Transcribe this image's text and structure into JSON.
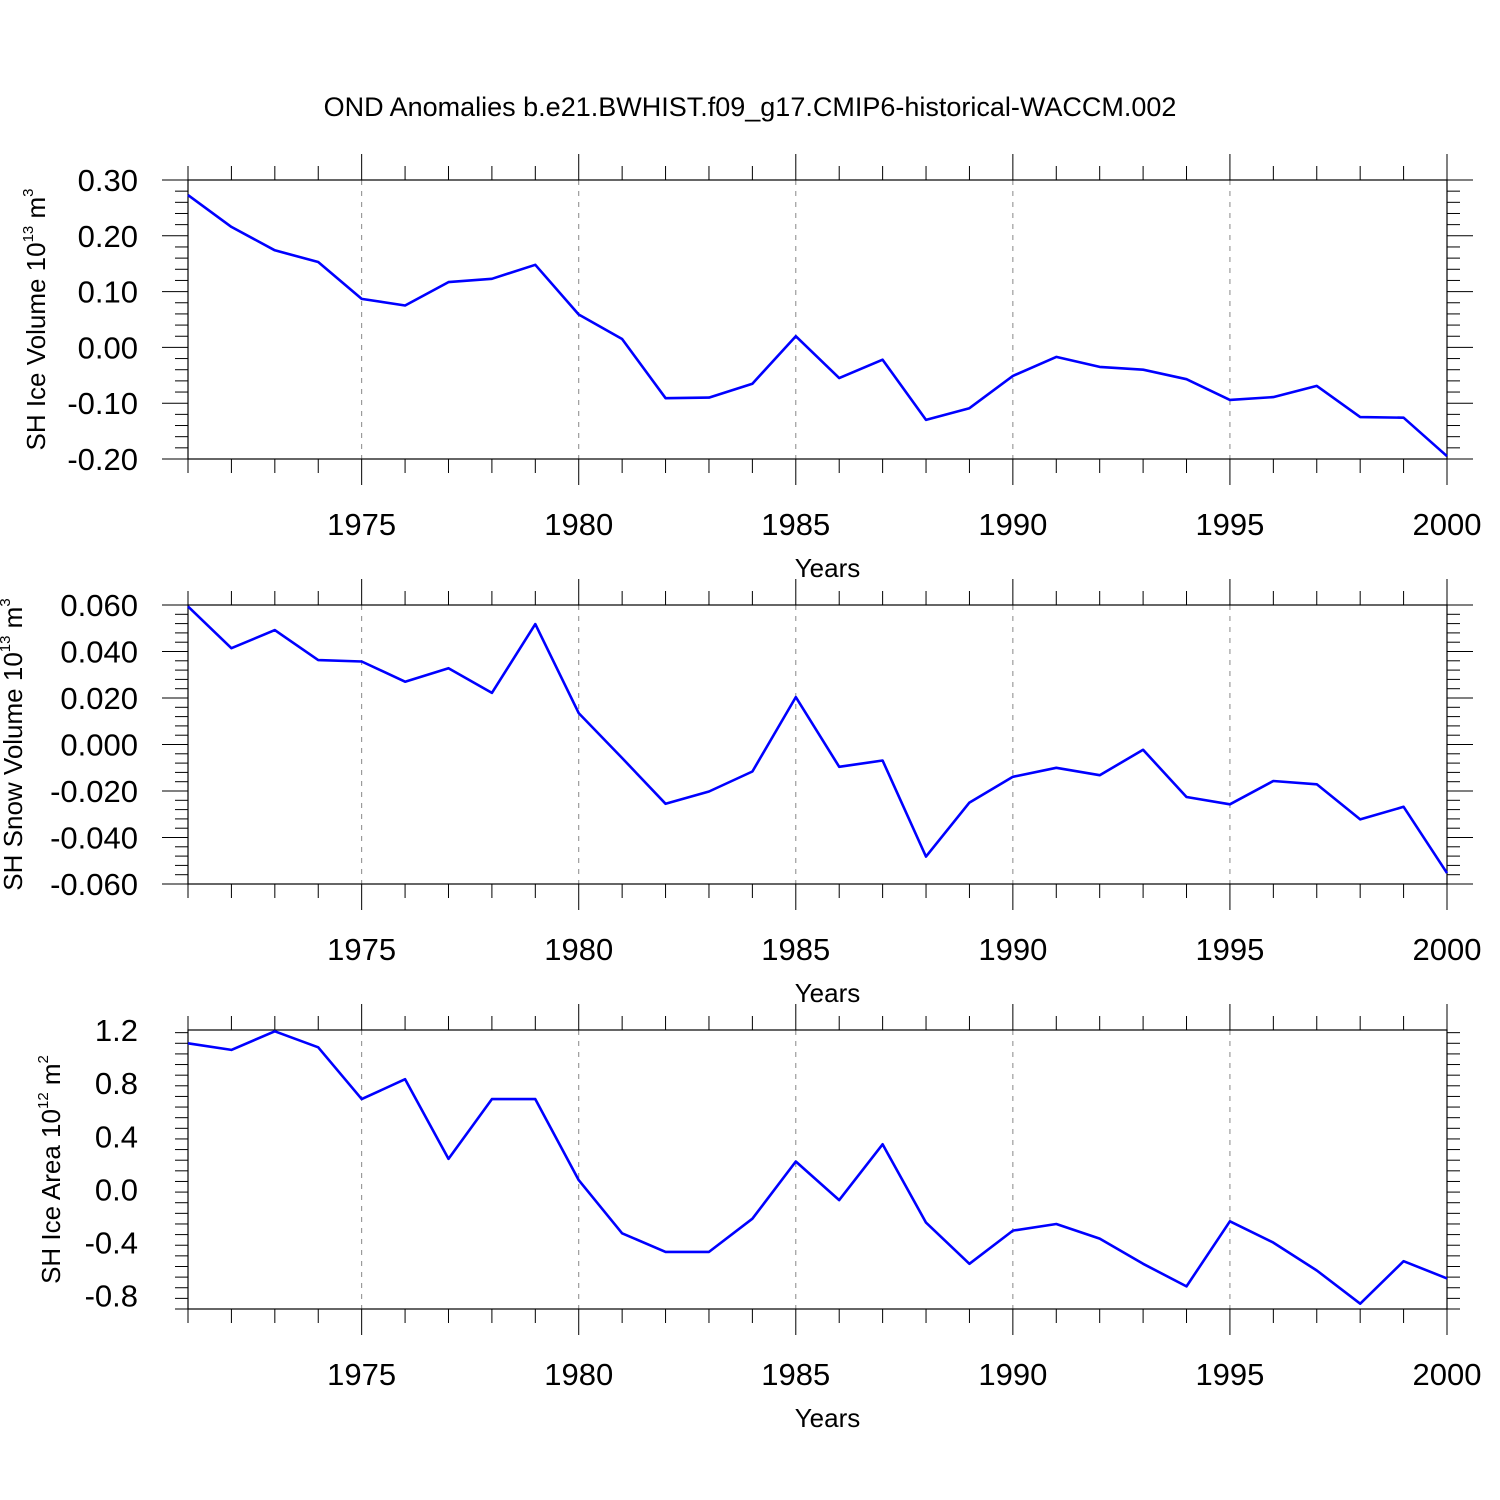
{
  "title": "OND Anomalies b.e21.BWHIST.f09_g17.CMIP6-historical-WACCM.002",
  "style": {
    "line_color": "#0000ff",
    "grid_color": "#888888",
    "axis_color": "#000000"
  },
  "chart_data": [
    {
      "type": "line",
      "title": "OND Anomalies b.e21.BWHIST.f09_g17.CMIP6-historical-WACCM.002",
      "xlabel": "Years",
      "ylabel": {
        "text": "SH Ice Volume 10",
        "exp": "13",
        "unit": " m",
        "unit_exp": "3"
      },
      "xlim": [
        1971,
        2000
      ],
      "ylim": [
        -0.2,
        0.3
      ],
      "x_ticks": [
        1975,
        1980,
        1985,
        1990,
        1995,
        2000
      ],
      "x_tick_labels": [
        "1975",
        "1980",
        "1985",
        "1990",
        "1995",
        "2000"
      ],
      "y_ticks": [
        -0.2,
        -0.1,
        0.0,
        0.1,
        0.2,
        0.3
      ],
      "y_tick_labels": [
        "-0.20",
        "-0.10",
        "0.00",
        "0.10",
        "0.20",
        "0.30"
      ],
      "grid": "vertical dashed at major x ticks",
      "x": [
        1971,
        1972,
        1973,
        1974,
        1975,
        1976,
        1977,
        1978,
        1979,
        1980,
        1981,
        1982,
        1983,
        1984,
        1985,
        1986,
        1987,
        1988,
        1989,
        1990,
        1991,
        1992,
        1993,
        1994,
        1995,
        1996,
        1997,
        1998,
        1999,
        2000
      ],
      "series": [
        {
          "values": [
            0.273,
            0.216,
            0.174,
            0.153,
            0.087,
            0.075,
            0.117,
            0.123,
            0.148,
            0.059,
            0.015,
            -0.091,
            -0.09,
            -0.065,
            0.02,
            -0.055,
            -0.022,
            -0.13,
            -0.109,
            -0.051,
            -0.017,
            -0.035,
            -0.04,
            -0.057,
            -0.094,
            -0.089,
            -0.069,
            -0.125,
            -0.126,
            -0.195
          ]
        }
      ]
    },
    {
      "type": "line",
      "xlabel": "Years",
      "ylabel": {
        "text": "SH Snow Volume 10",
        "exp": "13",
        "unit": " m",
        "unit_exp": "3"
      },
      "xlim": [
        1971,
        2000
      ],
      "ylim": [
        -0.06,
        0.06
      ],
      "x_ticks": [
        1975,
        1980,
        1985,
        1990,
        1995,
        2000
      ],
      "x_tick_labels": [
        "1975",
        "1980",
        "1985",
        "1990",
        "1995",
        "2000"
      ],
      "y_ticks": [
        -0.06,
        -0.04,
        -0.02,
        0.0,
        0.02,
        0.04,
        0.06
      ],
      "y_tick_labels": [
        "-0.060",
        "-0.040",
        "-0.020",
        "0.000",
        "0.020",
        "0.040",
        "0.060"
      ],
      "grid": "vertical dashed at major x ticks",
      "x": [
        1971,
        1972,
        1973,
        1974,
        1975,
        1976,
        1977,
        1978,
        1979,
        1980,
        1981,
        1982,
        1983,
        1984,
        1985,
        1986,
        1987,
        1988,
        1989,
        1990,
        1991,
        1992,
        1993,
        1994,
        1995,
        1996,
        1997,
        1998,
        1999,
        2000
      ],
      "series": [
        {
          "values": [
            0.0594,
            0.0414,
            0.0492,
            0.0363,
            0.0357,
            0.027,
            0.0328,
            0.0222,
            0.0518,
            0.0135,
            -0.0058,
            -0.0255,
            -0.0202,
            -0.0116,
            0.0204,
            -0.0096,
            -0.0069,
            -0.0482,
            -0.025,
            -0.0139,
            -0.01,
            -0.0132,
            -0.0023,
            -0.0226,
            -0.0257,
            -0.0157,
            -0.0171,
            -0.0322,
            -0.0268,
            -0.0553
          ]
        }
      ]
    },
    {
      "type": "line",
      "xlabel": "Years",
      "ylabel": {
        "text": "SH Ice Area 10",
        "exp": "12",
        "unit": " m",
        "unit_exp": "2"
      },
      "xlim": [
        1971,
        2000
      ],
      "ylim": [
        -0.9,
        1.2
      ],
      "x_ticks": [
        1975,
        1980,
        1985,
        1990,
        1995,
        2000
      ],
      "x_tick_labels": [
        "1975",
        "1980",
        "1985",
        "1990",
        "1995",
        "2000"
      ],
      "y_ticks": [
        -0.8,
        -0.4,
        0.0,
        0.4,
        0.8,
        1.2
      ],
      "y_tick_labels": [
        "-0.8",
        "-0.4",
        "0.0",
        "0.4",
        "0.8",
        "1.2"
      ],
      "grid": "vertical dashed at major x ticks",
      "x": [
        1971,
        1972,
        1973,
        1974,
        1975,
        1976,
        1977,
        1978,
        1979,
        1980,
        1981,
        1982,
        1983,
        1984,
        1985,
        1986,
        1987,
        1988,
        1989,
        1990,
        1991,
        1992,
        1993,
        1994,
        1995,
        1996,
        1997,
        1998,
        1999,
        2000
      ],
      "series": [
        {
          "values": [
            1.1,
            1.05,
            1.19,
            1.07,
            0.68,
            0.83,
            0.23,
            0.68,
            0.68,
            0.07,
            -0.33,
            -0.47,
            -0.47,
            -0.22,
            0.21,
            -0.08,
            0.34,
            -0.25,
            -0.56,
            -0.31,
            -0.26,
            -0.37,
            -0.56,
            -0.73,
            -0.24,
            -0.4,
            -0.61,
            -0.86,
            -0.54,
            -0.67
          ]
        }
      ]
    }
  ]
}
